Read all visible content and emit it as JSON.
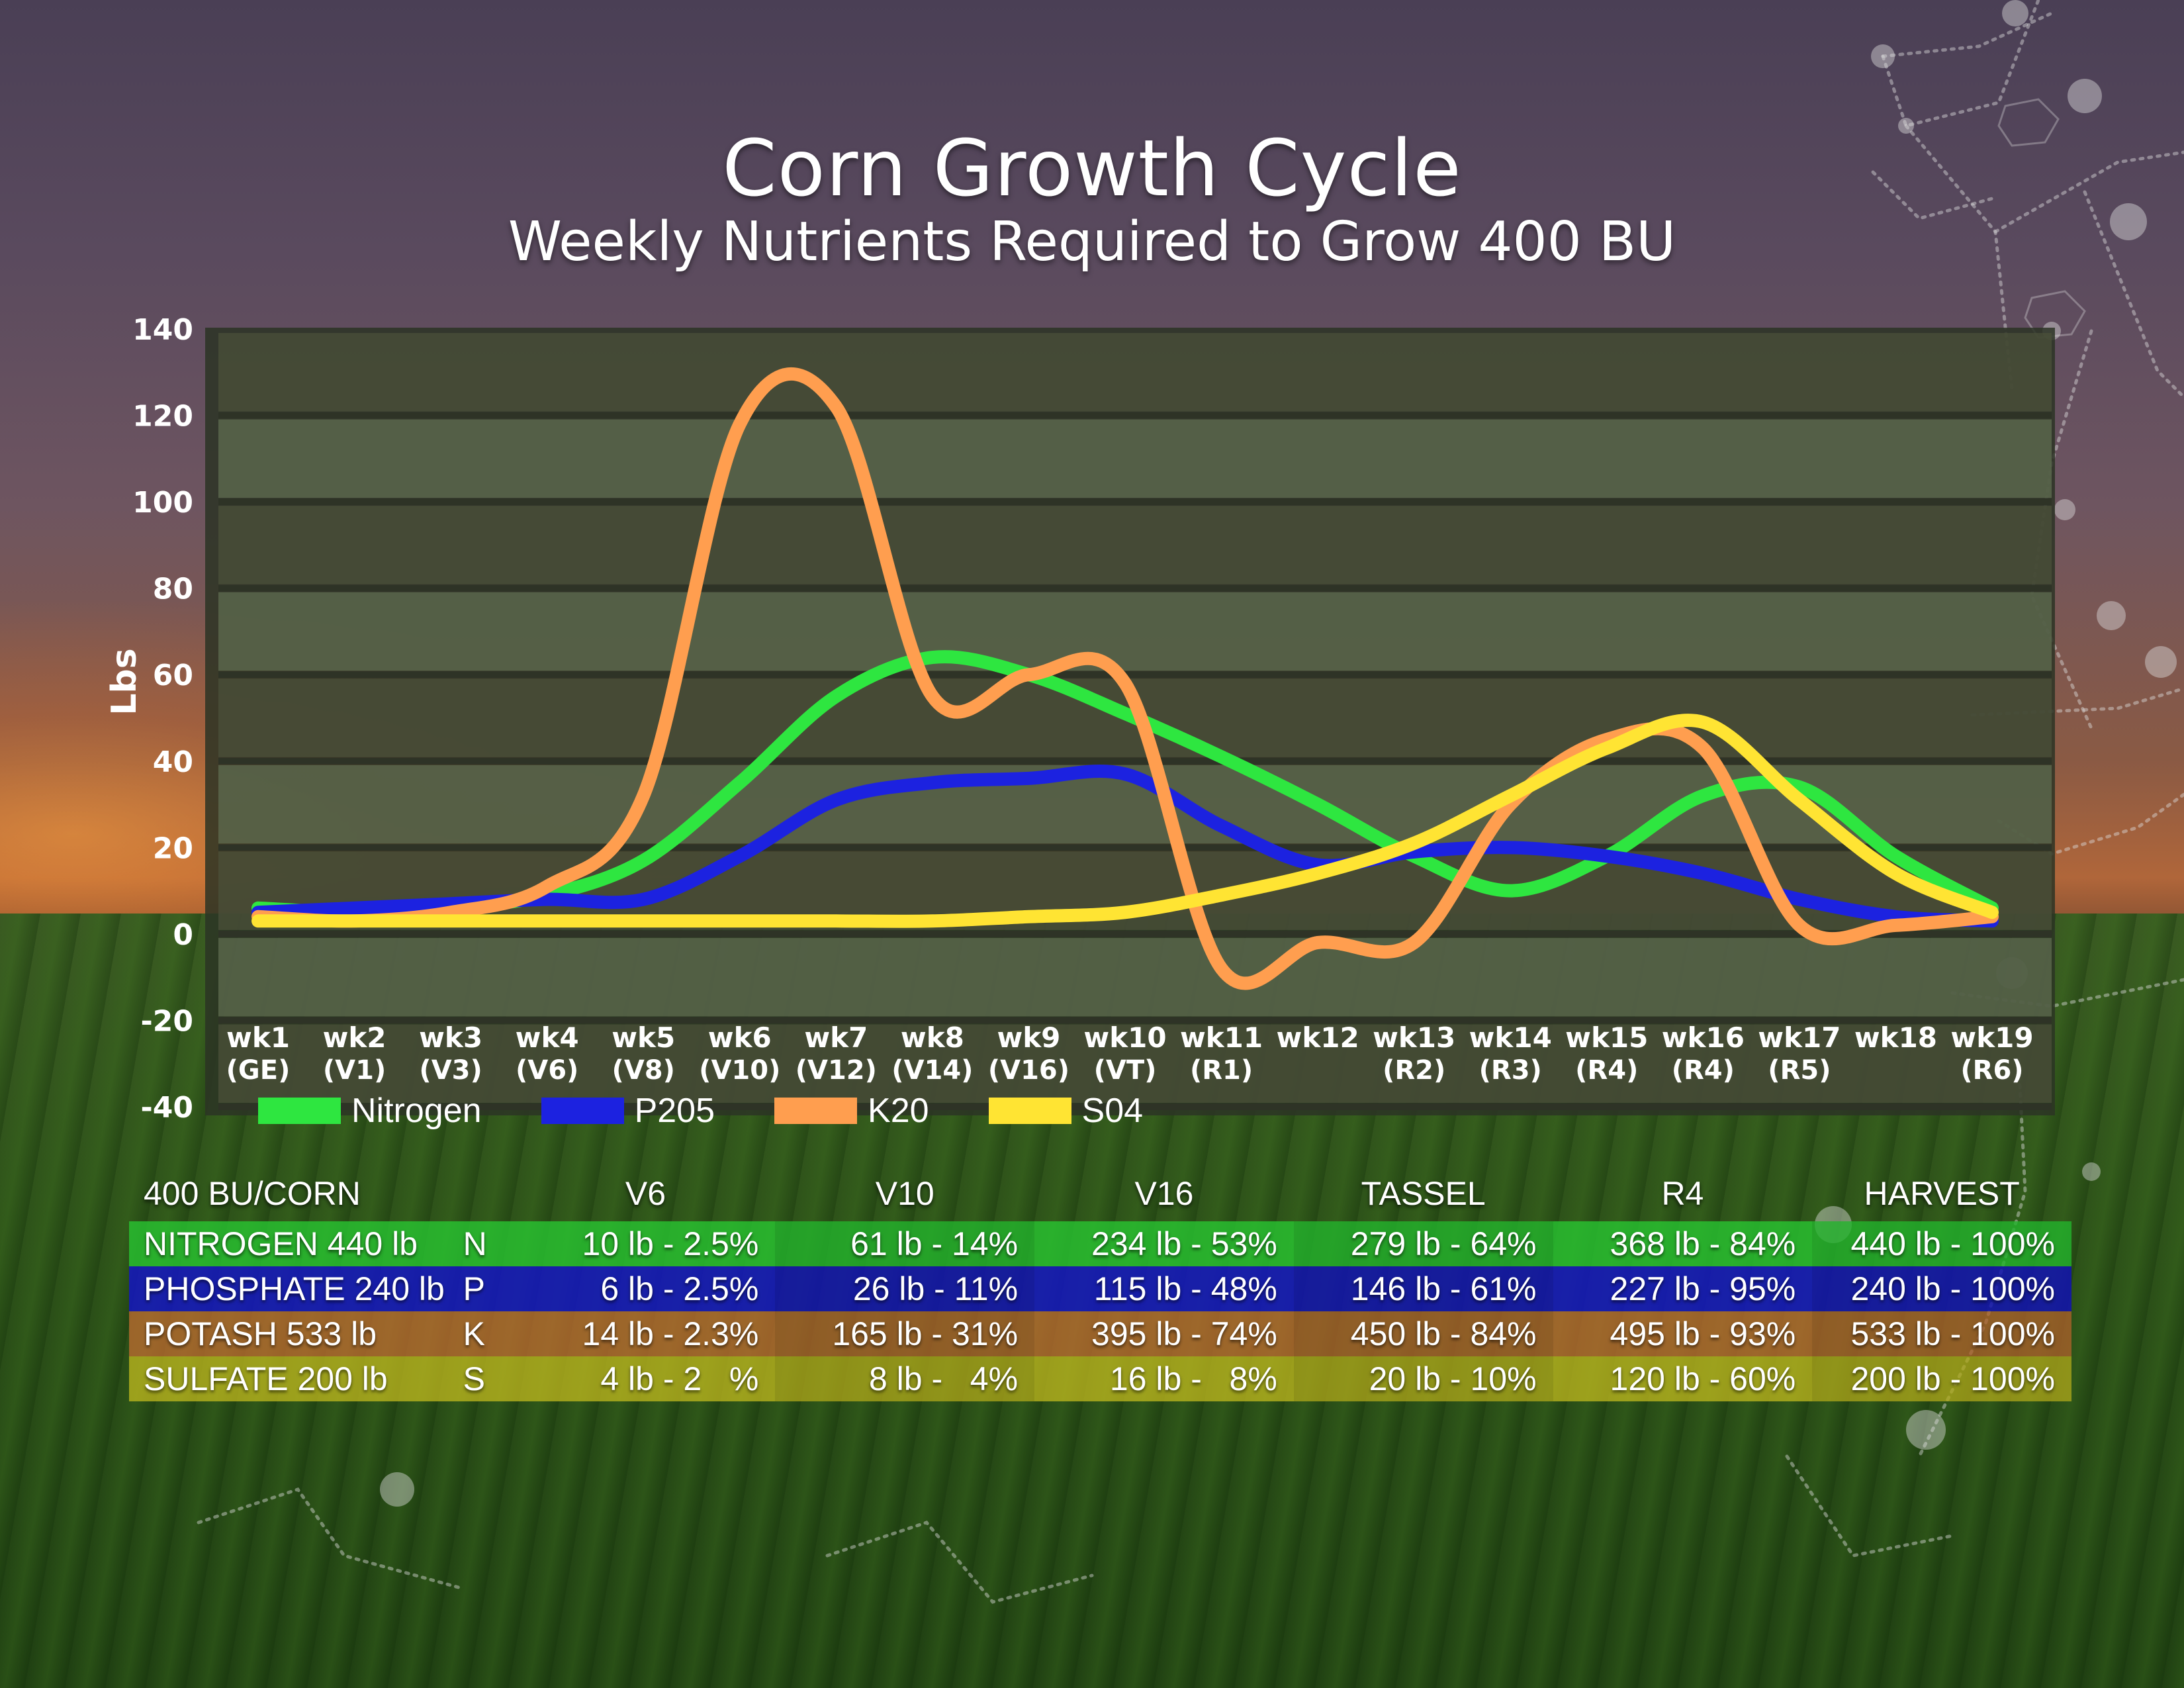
{
  "header": {
    "title": "Corn Growth Cycle",
    "subtitle": "Weekly Nutrients Required to Grow 400 BU"
  },
  "chart_data": {
    "type": "line",
    "title": "Corn Growth Cycle",
    "subtitle": "Weekly Nutrients Required to Grow 400 BU",
    "xlabel": "",
    "ylabel": "Lbs",
    "ylim": [
      -40,
      140
    ],
    "yticks": [
      140,
      120,
      100,
      80,
      60,
      40,
      20,
      0,
      -20,
      -40
    ],
    "grid": true,
    "smooth": true,
    "legend_position": "bottom",
    "categories": [
      {
        "week": "wk1",
        "stage": "(GE)"
      },
      {
        "week": "wk2",
        "stage": "(V1)"
      },
      {
        "week": "wk3",
        "stage": "(V3)"
      },
      {
        "week": "wk4",
        "stage": "(V6)"
      },
      {
        "week": "wk5",
        "stage": "(V8)"
      },
      {
        "week": "wk6",
        "stage": "(V10)"
      },
      {
        "week": "wk7",
        "stage": "(V12)"
      },
      {
        "week": "wk8",
        "stage": "(V14)"
      },
      {
        "week": "wk9",
        "stage": "(V16)"
      },
      {
        "week": "wk10",
        "stage": "(VT)"
      },
      {
        "week": "wk11",
        "stage": "(R1)"
      },
      {
        "week": "wk12",
        "stage": ""
      },
      {
        "week": "wk13",
        "stage": "(R2)"
      },
      {
        "week": "wk14",
        "stage": "(R3)"
      },
      {
        "week": "wk15",
        "stage": "(R4)"
      },
      {
        "week": "wk16",
        "stage": "(R4)"
      },
      {
        "week": "wk17",
        "stage": "(R5)"
      },
      {
        "week": "wk18",
        "stage": ""
      },
      {
        "week": "wk19",
        "stage": "(R6)"
      }
    ],
    "series": [
      {
        "name": "Nitrogen",
        "color": "#2ee640",
        "values": [
          6,
          5,
          6,
          9,
          17,
          35,
          55,
          64,
          60,
          51,
          41,
          30,
          18,
          10,
          18,
          32,
          34,
          18,
          6
        ]
      },
      {
        "name": "P205",
        "color": "#1c22e0",
        "values": [
          5,
          6,
          7,
          8,
          8,
          18,
          31,
          35,
          36,
          37,
          25,
          16,
          19,
          20,
          18,
          14,
          8,
          4,
          3
        ]
      },
      {
        "name": "K20",
        "color": "#ff9e4f",
        "values": [
          4,
          3,
          5,
          11,
          32,
          118,
          122,
          55,
          60,
          58,
          -8,
          -2,
          -2,
          30,
          45,
          43,
          2,
          2,
          4
        ]
      },
      {
        "name": "S04",
        "color": "#ffe433",
        "values": [
          3,
          3,
          3,
          3,
          3,
          3,
          3,
          3,
          4,
          5,
          9,
          14,
          21,
          32,
          43,
          49,
          31,
          14,
          5
        ]
      }
    ]
  },
  "table": {
    "corner_label": "400 BU/CORN",
    "columns": [
      "V6",
      "V10",
      "V16",
      "TASSEL",
      "R4",
      "HARVEST"
    ],
    "rows": [
      {
        "name": "NITROGEN 440 lb",
        "symbol": "N",
        "color": "#2ec83a",
        "cells": [
          "10 lb - 2.5%",
          "61 lb - 14%",
          "234 lb - 53%",
          "279 lb - 64%",
          "368 lb - 84%",
          "440 lb - 100%"
        ]
      },
      {
        "name": "PHOSPHATE 240 lb",
        "symbol": "P",
        "color": "#1414c8",
        "cells": [
          "6 lb - 2.5%",
          "26 lb - 11%",
          "115 lb - 48%",
          "146 lb - 61%",
          "227 lb - 95%",
          "240 lb - 100%"
        ]
      },
      {
        "name": "POTASH 533 lb",
        "symbol": "K",
        "color": "#c86e32",
        "cells": [
          "14 lb - 2.3%",
          "165 lb - 31%",
          "395 lb - 74%",
          "450 lb - 84%",
          "495 lb - 93%",
          "533 lb - 100%"
        ]
      },
      {
        "name": "SULFATE 200 lb",
        "symbol": "S",
        "color": "#c8be1e",
        "cells": [
          "4 lb - 2   %",
          "8 lb -   4%",
          "16 lb -   8%",
          "20 lb - 10%",
          "120 lb - 60%",
          "200 lb - 100%"
        ]
      }
    ]
  }
}
